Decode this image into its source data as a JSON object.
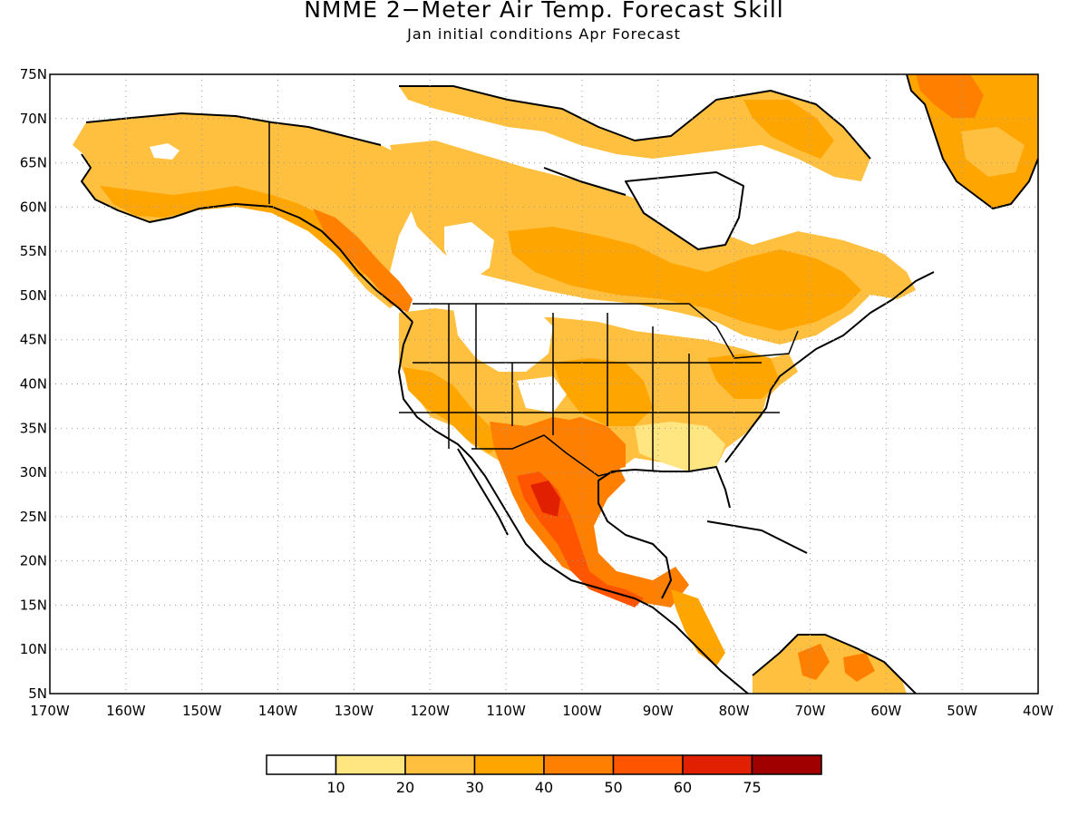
{
  "title": "NMME 2−Meter Air Temp. Forecast Skill",
  "subtitle": "Jan initial conditions  Apr Forecast",
  "lat_labels": [
    "75N",
    "70N",
    "65N",
    "60N",
    "55N",
    "50N",
    "45N",
    "40N",
    "35N",
    "30N",
    "25N",
    "20N",
    "15N",
    "10N",
    "5N"
  ],
  "lon_labels": [
    "170W",
    "160W",
    "150W",
    "140W",
    "130W",
    "120W",
    "110W",
    "100W",
    "90W",
    "80W",
    "70W",
    "60W",
    "50W",
    "40W"
  ],
  "colorbar": {
    "colors": [
      "#ffffff",
      "#ffe680",
      "#ffc040",
      "#ffa500",
      "#ff8000",
      "#ff5500",
      "#e02000",
      "#a00000"
    ],
    "labels": [
      "10",
      "20",
      "30",
      "40",
      "50",
      "60",
      "75"
    ]
  },
  "legend": {
    "ranges": [
      {
        "label": "<10",
        "color": "#ffffff"
      },
      {
        "label": "10-20",
        "color": "#ffe680"
      },
      {
        "label": "20-30",
        "color": "#ffc040"
      },
      {
        "label": "30-40",
        "color": "#ffa500"
      },
      {
        "label": "40-50",
        "color": "#ff8000"
      },
      {
        "label": "50-60",
        "color": "#ff5500"
      },
      {
        "label": "60-75",
        "color": "#e02000"
      },
      {
        "label": ">75",
        "color": "#a00000"
      }
    ]
  }
}
